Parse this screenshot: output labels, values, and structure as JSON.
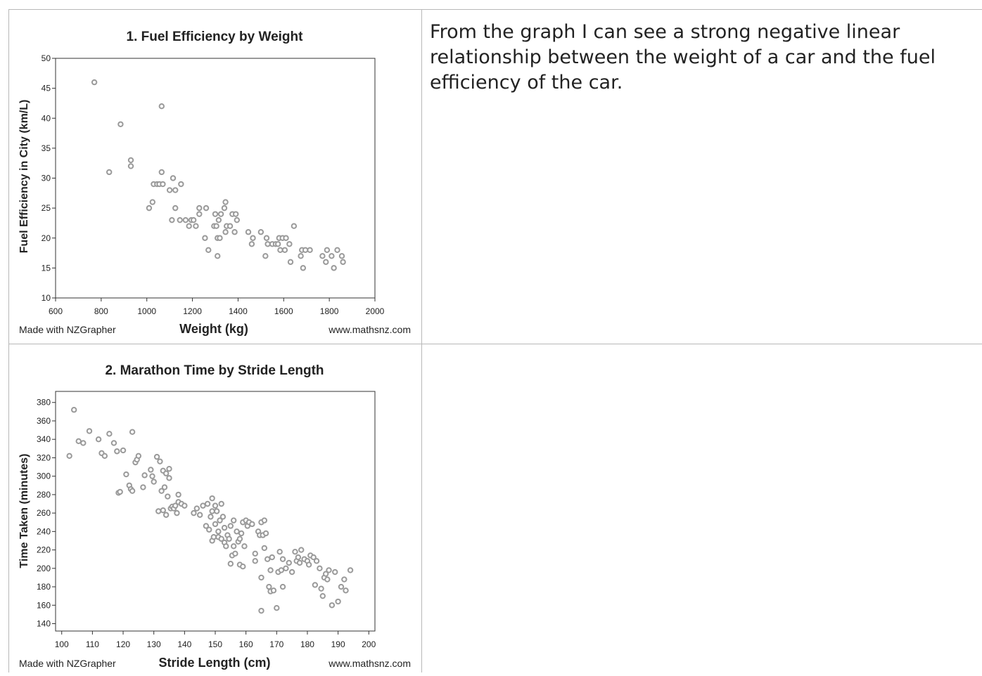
{
  "charts": [
    {
      "title": "1. Fuel Efficiency by Weight",
      "xlabel": "Weight (kg)",
      "ylabel": "Fuel Efficiency in City (km/L)",
      "credit_left": "Made with NZGrapher",
      "credit_right": "www.mathsnz.com",
      "xticks": [
        "600",
        "800",
        "1000",
        "1200",
        "1400",
        "1600",
        "1800",
        "2000"
      ],
      "yticks": [
        "10",
        "15",
        "20",
        "25",
        "30",
        "35",
        "40",
        "45",
        "50"
      ]
    },
    {
      "title": "2. Marathon Time by Stride Length",
      "xlabel": "Stride Length (cm)",
      "ylabel": "Time Taken (minutes)",
      "credit_left": "Made with NZGrapher",
      "credit_right": "www.mathsnz.com",
      "xticks": [
        "100",
        "110",
        "120",
        "130",
        "140",
        "150",
        "160",
        "170",
        "180",
        "190",
        "200"
      ],
      "yticks": [
        "140",
        "160",
        "180",
        "200",
        "220",
        "240",
        "260",
        "280",
        "300",
        "320",
        "340",
        "360",
        "380"
      ]
    }
  ],
  "answers": {
    "q1": "From the graph I can see a strong negative linear relationship between the weight of a car and the fuel efficiency of the car.",
    "q2": ""
  },
  "chart_data": [
    {
      "type": "scatter",
      "title": "1. Fuel Efficiency by Weight",
      "xlabel": "Weight (kg)",
      "ylabel": "Fuel Efficiency in City (km/L)",
      "xlim": [
        600,
        2000
      ],
      "ylim": [
        10,
        50
      ],
      "grid": false,
      "marker_color": "#9a9a9a",
      "points": [
        [
          770,
          46
        ],
        [
          835,
          31
        ],
        [
          885,
          39
        ],
        [
          930,
          33
        ],
        [
          930,
          32
        ],
        [
          1010,
          25
        ],
        [
          1025,
          26
        ],
        [
          1030,
          29
        ],
        [
          1045,
          29
        ],
        [
          1055,
          29
        ],
        [
          1065,
          42
        ],
        [
          1065,
          31
        ],
        [
          1070,
          29
        ],
        [
          1100,
          28
        ],
        [
          1110,
          23
        ],
        [
          1115,
          30
        ],
        [
          1125,
          28
        ],
        [
          1125,
          25
        ],
        [
          1145,
          23
        ],
        [
          1150,
          29
        ],
        [
          1170,
          23
        ],
        [
          1185,
          22
        ],
        [
          1195,
          23
        ],
        [
          1205,
          23
        ],
        [
          1215,
          22
        ],
        [
          1230,
          25
        ],
        [
          1230,
          24
        ],
        [
          1255,
          20
        ],
        [
          1260,
          25
        ],
        [
          1270,
          18
        ],
        [
          1295,
          22
        ],
        [
          1300,
          24
        ],
        [
          1305,
          22
        ],
        [
          1310,
          20
        ],
        [
          1310,
          17
        ],
        [
          1315,
          23
        ],
        [
          1320,
          20
        ],
        [
          1325,
          24
        ],
        [
          1340,
          25
        ],
        [
          1345,
          26
        ],
        [
          1345,
          21
        ],
        [
          1350,
          22
        ],
        [
          1365,
          22
        ],
        [
          1375,
          24
        ],
        [
          1385,
          21
        ],
        [
          1390,
          24
        ],
        [
          1395,
          23
        ],
        [
          1445,
          21
        ],
        [
          1460,
          19
        ],
        [
          1465,
          20
        ],
        [
          1500,
          21
        ],
        [
          1520,
          17
        ],
        [
          1525,
          20
        ],
        [
          1530,
          19
        ],
        [
          1550,
          19
        ],
        [
          1565,
          19
        ],
        [
          1575,
          19
        ],
        [
          1580,
          20
        ],
        [
          1585,
          18
        ],
        [
          1595,
          20
        ],
        [
          1605,
          18
        ],
        [
          1610,
          20
        ],
        [
          1625,
          19
        ],
        [
          1630,
          16
        ],
        [
          1645,
          22
        ],
        [
          1675,
          17
        ],
        [
          1680,
          18
        ],
        [
          1685,
          15
        ],
        [
          1695,
          18
        ],
        [
          1715,
          18
        ],
        [
          1770,
          17
        ],
        [
          1785,
          16
        ],
        [
          1790,
          18
        ],
        [
          1810,
          17
        ],
        [
          1820,
          15
        ],
        [
          1835,
          18
        ],
        [
          1855,
          17
        ],
        [
          1860,
          16
        ]
      ]
    },
    {
      "type": "scatter",
      "title": "2. Marathon Time by Stride Length",
      "xlabel": "Stride Length (cm)",
      "ylabel": "Time Taken (minutes)",
      "xlim": [
        98,
        202
      ],
      "ylim": [
        132,
        392
      ],
      "grid": false,
      "marker_color": "#9a9a9a",
      "points": [
        [
          102.5,
          322
        ],
        [
          104,
          372
        ],
        [
          105.5,
          338
        ],
        [
          107,
          336
        ],
        [
          109,
          349
        ],
        [
          112,
          340
        ],
        [
          113,
          325
        ],
        [
          114,
          322
        ],
        [
          115.5,
          346
        ],
        [
          117,
          336
        ],
        [
          118,
          327
        ],
        [
          118.5,
          282
        ],
        [
          119,
          283
        ],
        [
          120,
          328
        ],
        [
          121,
          302
        ],
        [
          122,
          290
        ],
        [
          122.5,
          286
        ],
        [
          123,
          348
        ],
        [
          123,
          284
        ],
        [
          124,
          315
        ],
        [
          124.5,
          318
        ],
        [
          125,
          322
        ],
        [
          126.5,
          288
        ],
        [
          127,
          301
        ],
        [
          129,
          307
        ],
        [
          129.5,
          300
        ],
        [
          130,
          294
        ],
        [
          131,
          321
        ],
        [
          131.5,
          262
        ],
        [
          132,
          316
        ],
        [
          132.5,
          284
        ],
        [
          133,
          263
        ],
        [
          133,
          306
        ],
        [
          133.5,
          288
        ],
        [
          134,
          258
        ],
        [
          134,
          303
        ],
        [
          134.5,
          278
        ],
        [
          135,
          308
        ],
        [
          135,
          298
        ],
        [
          135.5,
          265
        ],
        [
          136,
          267
        ],
        [
          136.5,
          265
        ],
        [
          137,
          268
        ],
        [
          137.5,
          260
        ],
        [
          138,
          280
        ],
        [
          138,
          272
        ],
        [
          139,
          270
        ],
        [
          140,
          268
        ],
        [
          143,
          260
        ],
        [
          144,
          265
        ],
        [
          145,
          258
        ],
        [
          146,
          268
        ],
        [
          147,
          246
        ],
        [
          147.5,
          270
        ],
        [
          148,
          242
        ],
        [
          148.5,
          256
        ],
        [
          149,
          262
        ],
        [
          149,
          276
        ],
        [
          149,
          230
        ],
        [
          149.5,
          234
        ],
        [
          150,
          268
        ],
        [
          150,
          248
        ],
        [
          150.5,
          262
        ],
        [
          151,
          234
        ],
        [
          151,
          240
        ],
        [
          151.5,
          252
        ],
        [
          152,
          270
        ],
        [
          152,
          232
        ],
        [
          152.5,
          256
        ],
        [
          153,
          228
        ],
        [
          153,
          244
        ],
        [
          153.5,
          224
        ],
        [
          154,
          236
        ],
        [
          154.5,
          232
        ],
        [
          155,
          246
        ],
        [
          155,
          205
        ],
        [
          155.5,
          214
        ],
        [
          156,
          252
        ],
        [
          156,
          224
        ],
        [
          156.5,
          216
        ],
        [
          157,
          240
        ],
        [
          157.5,
          229
        ],
        [
          158,
          232
        ],
        [
          158,
          204
        ],
        [
          158.5,
          238
        ],
        [
          159,
          250
        ],
        [
          159,
          202
        ],
        [
          159.5,
          224
        ],
        [
          160,
          252
        ],
        [
          160.5,
          246
        ],
        [
          161,
          250
        ],
        [
          162,
          248
        ],
        [
          163,
          216
        ],
        [
          163,
          208
        ],
        [
          164,
          240
        ],
        [
          164.5,
          236
        ],
        [
          165,
          190
        ],
        [
          165,
          250
        ],
        [
          165,
          154
        ],
        [
          165.5,
          236
        ],
        [
          166,
          222
        ],
        [
          166,
          252
        ],
        [
          166.5,
          238
        ],
        [
          167,
          210
        ],
        [
          167.5,
          180
        ],
        [
          168,
          198
        ],
        [
          168,
          175
        ],
        [
          168.5,
          212
        ],
        [
          169,
          176
        ],
        [
          170,
          157
        ],
        [
          170.5,
          196
        ],
        [
          171,
          218
        ],
        [
          171.5,
          198
        ],
        [
          172,
          180
        ],
        [
          172,
          210
        ],
        [
          173,
          200
        ],
        [
          174,
          206
        ],
        [
          175,
          196
        ],
        [
          176,
          218
        ],
        [
          176.5,
          208
        ],
        [
          177,
          212
        ],
        [
          177.5,
          206
        ],
        [
          178,
          220
        ],
        [
          179,
          210
        ],
        [
          180,
          208
        ],
        [
          180.5,
          204
        ],
        [
          181,
          214
        ],
        [
          182,
          212
        ],
        [
          182.5,
          182
        ],
        [
          183,
          208
        ],
        [
          184,
          200
        ],
        [
          184.5,
          178
        ],
        [
          185,
          170
        ],
        [
          185.5,
          190
        ],
        [
          186,
          194
        ],
        [
          186.5,
          188
        ],
        [
          187,
          198
        ],
        [
          188,
          160
        ],
        [
          189,
          196
        ],
        [
          190,
          164
        ],
        [
          191,
          180
        ],
        [
          192,
          188
        ],
        [
          192.5,
          176
        ],
        [
          194,
          198
        ]
      ]
    }
  ]
}
